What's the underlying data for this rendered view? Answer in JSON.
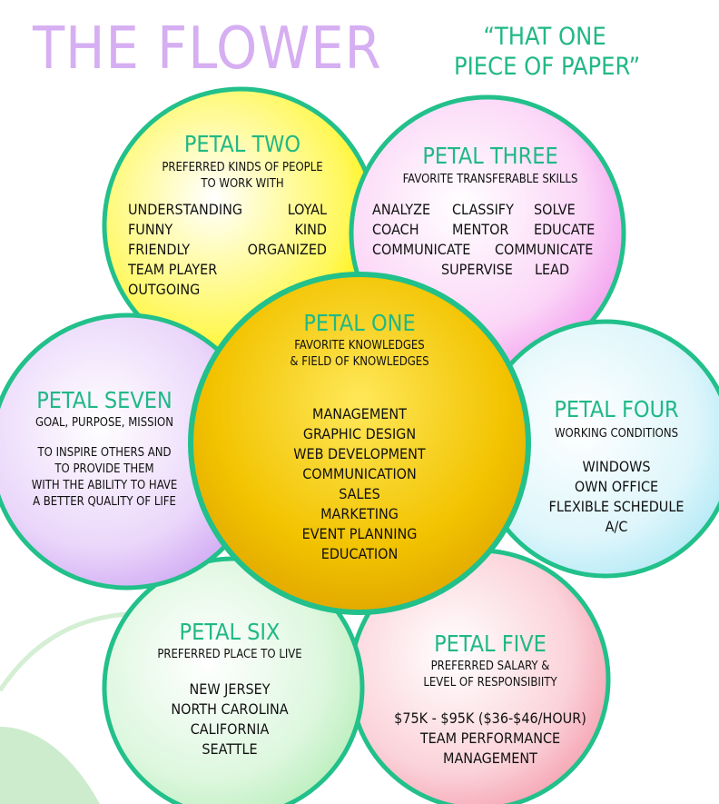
{
  "header": {
    "title": "THE FLOWER",
    "subtitle_line1": "“THAT ONE",
    "subtitle_line2": "PIECE OF PAPER”"
  },
  "colors": {
    "title": "#d6aef2",
    "accent_green": "#20b886",
    "outline": "#22c08a",
    "center_fill": "#f2c300",
    "petal_two_fill": "#fff85a",
    "petal_three_fill": "#f7b7f2",
    "petal_four_fill": "#c3eef7",
    "petal_five_fill": "#f7b0bc",
    "petal_six_fill": "#c7f2c8",
    "petal_seven_fill": "#dcbcf6",
    "leaf": "#cdeccd"
  },
  "petal_one": {
    "title": "PETAL ONE",
    "subtitle_line1": "FAVORITE KNOWLEDGES",
    "subtitle_line2": "& FIELD OF KNOWLEDGES",
    "items": [
      "MANAGEMENT",
      "GRAPHIC DESIGN",
      "WEB DEVELOPMENT",
      "COMMUNICATION",
      "SALES",
      "MARKETING",
      "EVENT PLANNING",
      "EDUCATION"
    ]
  },
  "petal_two": {
    "title": "PETAL TWO",
    "subtitle_line1": "PREFERRED KINDS OF PEOPLE",
    "subtitle_line2": "TO WORK WITH",
    "items_left": [
      "UNDERSTANDING",
      "FUNNY",
      "FRIENDLY",
      "TEAM PLAYER",
      "OUTGOING"
    ],
    "items_right": [
      "LOYAL",
      "KIND",
      "ORGANIZED"
    ]
  },
  "petal_three": {
    "title": "PETAL THREE",
    "subtitle": "FAVORITE TRANSFERABLE SKILLS",
    "rows": [
      [
        "ANALYZE",
        "CLASSIFY",
        "SOLVE"
      ],
      [
        "COACH",
        "MENTOR",
        "EDUCATE"
      ],
      [
        "COMMUNICATE",
        "COMMUNICATE"
      ],
      [
        "SUPERVISE",
        "LEAD"
      ]
    ]
  },
  "petal_four": {
    "title": "PETAL FOUR",
    "subtitle": "WORKING CONDITIONS",
    "items": [
      "WINDOWS",
      "OWN OFFICE",
      "FLEXIBLE SCHEDULE",
      "A/C"
    ]
  },
  "petal_five": {
    "title": "PETAL FIVE",
    "subtitle_line1": "PREFERRED SALARY &",
    "subtitle_line2": "LEVEL OF RESPONSIBIITY",
    "items": [
      "$75K - $95K ($36-$46/HOUR)",
      "TEAM PERFORMANCE",
      "MANAGEMENT"
    ]
  },
  "petal_six": {
    "title": "PETAL SIX",
    "subtitle": "PREFERRED PLACE TO LIVE",
    "items": [
      "NEW JERSEY",
      "NORTH CAROLINA",
      "CALIFORNIA",
      "SEATTLE"
    ]
  },
  "petal_seven": {
    "title": "PETAL SEVEN",
    "subtitle": "GOAL, PURPOSE, MISSION",
    "items": [
      "TO INSPIRE OTHERS AND",
      "TO PROVIDE THEM",
      "WITH THE ABILITY TO HAVE",
      "A BETTER QUALITY OF LIFE"
    ]
  }
}
